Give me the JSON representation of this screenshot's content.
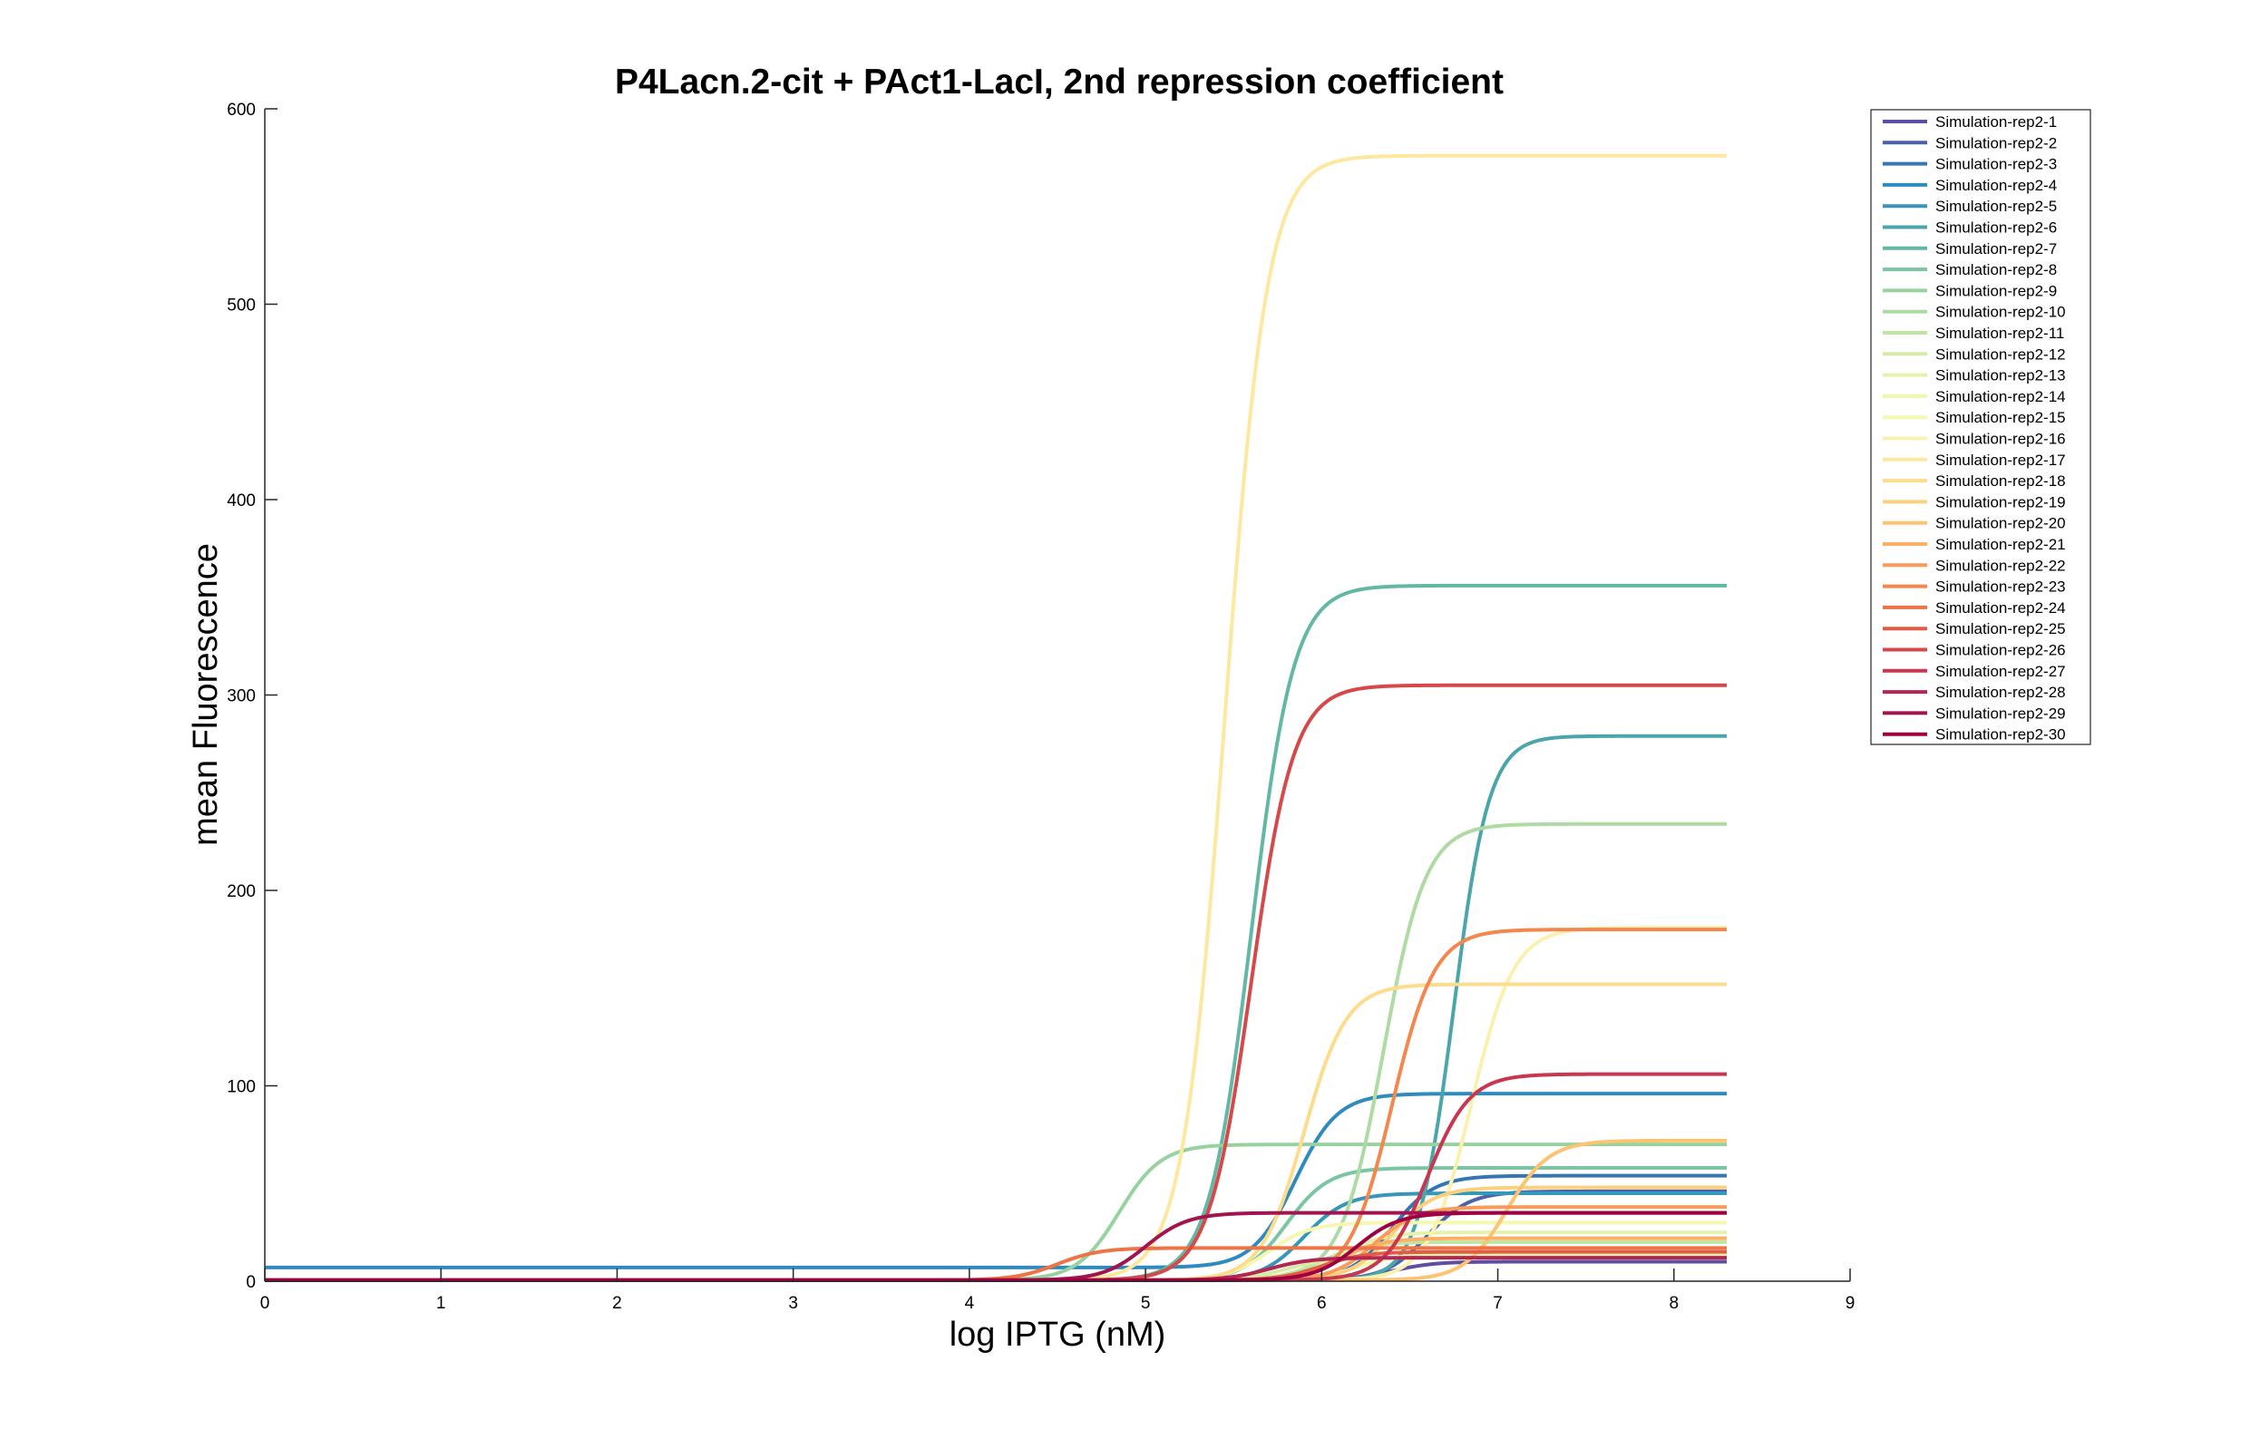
{
  "chart_data": {
    "type": "line",
    "title": "P4Lacn.2-cit + PAct1-LacI, 2nd repression coefficient",
    "xlabel": "log IPTG (nM)",
    "ylabel": "mean Fluorescence",
    "xlim": [
      0,
      9
    ],
    "ylim": [
      0,
      600
    ],
    "xticks": [
      0,
      1,
      2,
      3,
      4,
      5,
      6,
      7,
      8,
      9
    ],
    "yticks": [
      0,
      100,
      200,
      300,
      400,
      500,
      600
    ],
    "x_range": [
      0,
      8.3
    ],
    "grid": false,
    "legend_position": "top-right",
    "model": "sigmoid: y = base + (top - base) / (1 + exp(-(x - mid) / width))",
    "series": [
      {
        "name": "Simulation-rep2-1",
        "color": "#5e4fa2",
        "base": 0.5,
        "top": 10,
        "mid": 6.4,
        "width": 0.12
      },
      {
        "name": "Simulation-rep2-2",
        "color": "#4a62ab",
        "base": 0.5,
        "top": 46,
        "mid": 6.6,
        "width": 0.12
      },
      {
        "name": "Simulation-rep2-3",
        "color": "#3577b2",
        "base": 0.5,
        "top": 54,
        "mid": 6.4,
        "width": 0.12
      },
      {
        "name": "Simulation-rep2-4",
        "color": "#2f8bbd",
        "base": 7,
        "top": 96,
        "mid": 5.85,
        "width": 0.12
      },
      {
        "name": "Simulation-rep2-5",
        "color": "#3697b8",
        "base": 0.5,
        "top": 45,
        "mid": 5.9,
        "width": 0.12
      },
      {
        "name": "Simulation-rep2-6",
        "color": "#4ba6ac",
        "base": 0.5,
        "top": 279,
        "mid": 6.75,
        "width": 0.1
      },
      {
        "name": "Simulation-rep2-7",
        "color": "#62b8a4",
        "base": 0.5,
        "top": 356,
        "mid": 5.6,
        "width": 0.12
      },
      {
        "name": "Simulation-rep2-8",
        "color": "#7cc5a2",
        "base": 0.5,
        "top": 58,
        "mid": 5.8,
        "width": 0.12
      },
      {
        "name": "Simulation-rep2-9",
        "color": "#97d29f",
        "base": 0.5,
        "top": 70,
        "mid": 4.85,
        "width": 0.12
      },
      {
        "name": "Simulation-rep2-10",
        "color": "#aedba3",
        "base": 0.5,
        "top": 234,
        "mid": 6.35,
        "width": 0.12
      },
      {
        "name": "Simulation-rep2-11",
        "color": "#c2e4a2",
        "base": 0.5,
        "top": 20,
        "mid": 6.0,
        "width": 0.12
      },
      {
        "name": "Simulation-rep2-12",
        "color": "#d4eca6",
        "base": 0.5,
        "top": 12,
        "mid": 5.8,
        "width": 0.12
      },
      {
        "name": "Simulation-rep2-13",
        "color": "#e3f3a9",
        "base": 0.5,
        "top": 25,
        "mid": 6.1,
        "width": 0.12
      },
      {
        "name": "Simulation-rep2-14",
        "color": "#eef7ac",
        "base": 0.5,
        "top": 14,
        "mid": 6.2,
        "width": 0.12
      },
      {
        "name": "Simulation-rep2-15",
        "color": "#f6f7b0",
        "base": 0.5,
        "top": 30,
        "mid": 5.7,
        "width": 0.12
      },
      {
        "name": "Simulation-rep2-16",
        "color": "#faf1b0",
        "base": 0.5,
        "top": 181,
        "mid": 6.85,
        "width": 0.12
      },
      {
        "name": "Simulation-rep2-17",
        "color": "#fde8a0",
        "base": 0.5,
        "top": 576,
        "mid": 5.45,
        "width": 0.12
      },
      {
        "name": "Simulation-rep2-18",
        "color": "#fddc8c",
        "base": 0.5,
        "top": 152,
        "mid": 5.9,
        "width": 0.12
      },
      {
        "name": "Simulation-rep2-19",
        "color": "#fdd07f",
        "base": 0.5,
        "top": 48,
        "mid": 6.4,
        "width": 0.12
      },
      {
        "name": "Simulation-rep2-20",
        "color": "#fdc272",
        "base": 0.5,
        "top": 72,
        "mid": 7.05,
        "width": 0.12
      },
      {
        "name": "Simulation-rep2-21",
        "color": "#fdb065",
        "base": 0.5,
        "top": 22,
        "mid": 6.1,
        "width": 0.12
      },
      {
        "name": "Simulation-rep2-22",
        "color": "#f99c5a",
        "base": 0.5,
        "top": 38,
        "mid": 6.3,
        "width": 0.12
      },
      {
        "name": "Simulation-rep2-23",
        "color": "#f3874e",
        "base": 0.5,
        "top": 180,
        "mid": 6.4,
        "width": 0.12
      },
      {
        "name": "Simulation-rep2-24",
        "color": "#ec7446",
        "base": 0.5,
        "top": 17,
        "mid": 4.5,
        "width": 0.12
      },
      {
        "name": "Simulation-rep2-25",
        "color": "#e25d43",
        "base": 0.5,
        "top": 15,
        "mid": 6.0,
        "width": 0.12
      },
      {
        "name": "Simulation-rep2-26",
        "color": "#d6494b",
        "base": 0.5,
        "top": 305,
        "mid": 5.6,
        "width": 0.12
      },
      {
        "name": "Simulation-rep2-27",
        "color": "#c83750",
        "base": 0.5,
        "top": 106,
        "mid": 6.6,
        "width": 0.12
      },
      {
        "name": "Simulation-rep2-28",
        "color": "#b52551",
        "base": 0.5,
        "top": 12,
        "mid": 5.7,
        "width": 0.12
      },
      {
        "name": "Simulation-rep2-29",
        "color": "#a0154f",
        "base": 0.5,
        "top": 35,
        "mid": 5.0,
        "width": 0.12
      },
      {
        "name": "Simulation-rep2-30",
        "color": "#9e0142",
        "base": 0.5,
        "top": 35,
        "mid": 6.2,
        "width": 0.12
      }
    ]
  }
}
